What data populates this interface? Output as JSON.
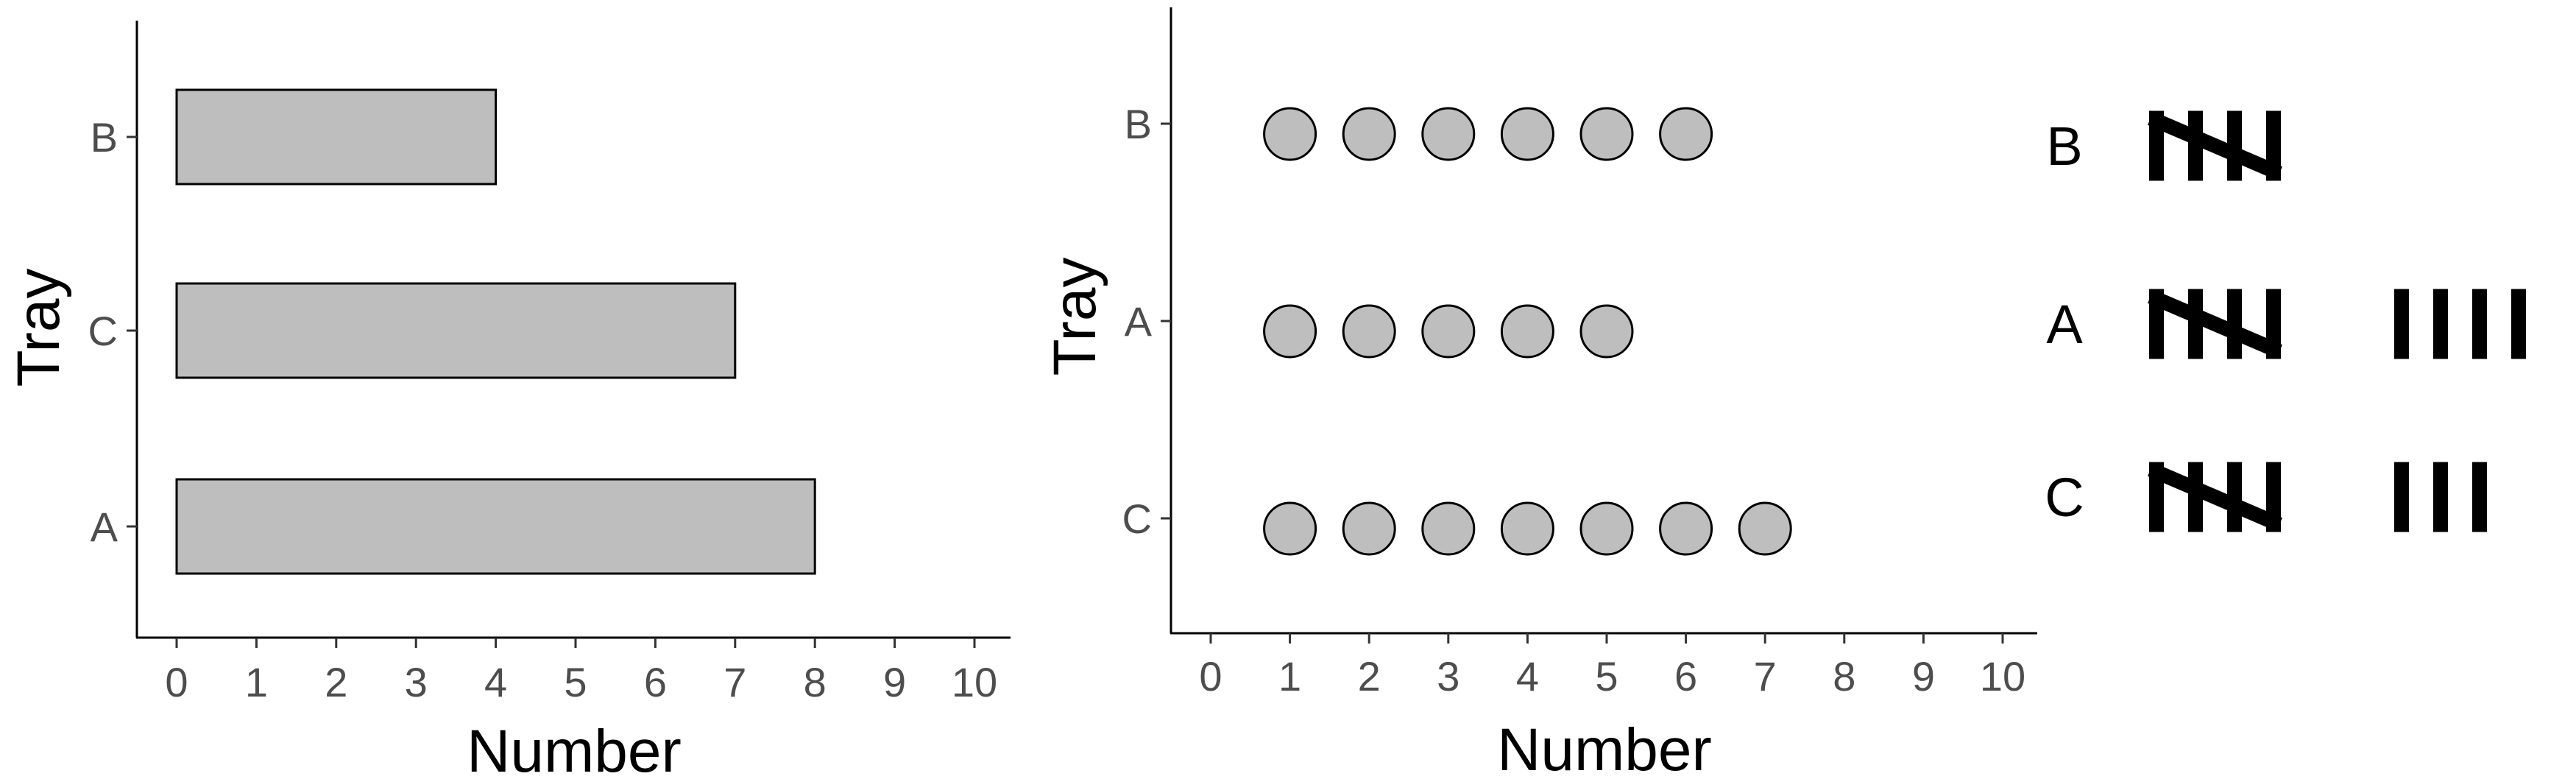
{
  "chart_data": [
    {
      "type": "bar",
      "orientation": "horizontal",
      "categories": [
        "A",
        "C",
        "B"
      ],
      "values": [
        8,
        7,
        4
      ],
      "xlabel": "Number",
      "ylabel": "Tray",
      "xlim": [
        0,
        10
      ],
      "x_ticks": [
        "0",
        "1",
        "2",
        "3",
        "4",
        "5",
        "6",
        "7",
        "8",
        "9",
        "10"
      ],
      "grid": false,
      "colors": {
        "fill": "#bebebe",
        "stroke": "#000000",
        "tick_text": "#4d4d4d"
      }
    },
    {
      "type": "scatter",
      "subtype": "dot-count",
      "categories": [
        "C",
        "A",
        "B"
      ],
      "values": [
        7,
        5,
        6
      ],
      "xlabel": "Number",
      "ylabel": "Tray",
      "xlim": [
        0,
        10
      ],
      "x_ticks": [
        "0",
        "1",
        "2",
        "3",
        "4",
        "5",
        "6",
        "7",
        "8",
        "9",
        "10"
      ],
      "grid": false,
      "colors": {
        "fill": "#bebebe",
        "stroke": "#000000",
        "tick_text": "#4d4d4d"
      }
    },
    {
      "type": "table",
      "subtype": "tally-marks",
      "rows": [
        {
          "label": "B",
          "count": 5
        },
        {
          "label": "A",
          "count": 9
        },
        {
          "label": "C",
          "count": 8
        }
      ],
      "colors": {
        "mark": "#000000"
      }
    }
  ]
}
